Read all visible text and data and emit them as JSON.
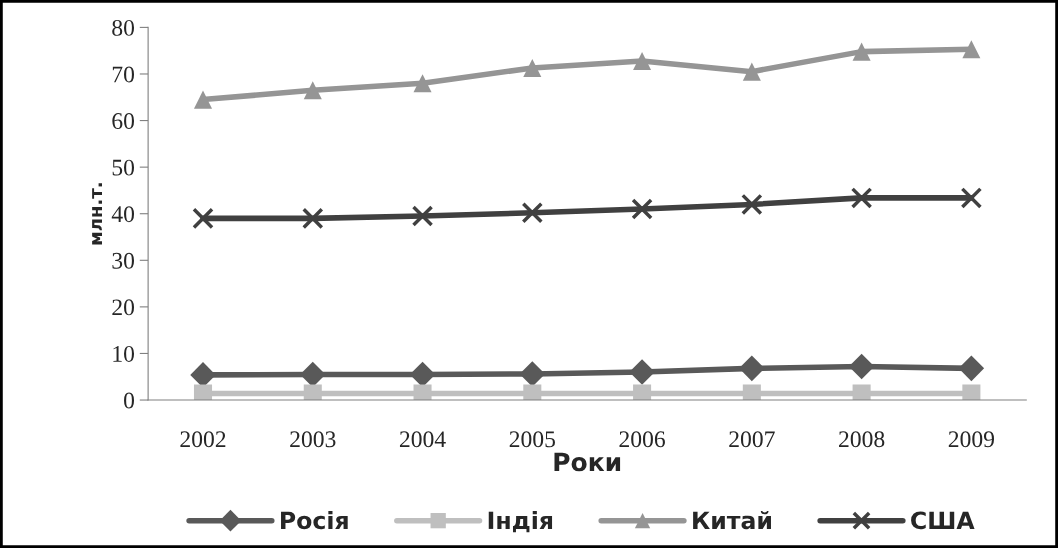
{
  "chart_data": {
    "type": "line",
    "xlabel": "Роки",
    "ylabel": "млн.т.",
    "categories": [
      "2002",
      "2003",
      "2004",
      "2005",
      "2006",
      "2007",
      "2008",
      "2009"
    ],
    "series": [
      {
        "name": "Росія",
        "color": "#595959",
        "marker": "diamond",
        "values": [
          5.4,
          5.5,
          5.5,
          5.6,
          6.0,
          6.8,
          7.2,
          6.8
        ]
      },
      {
        "name": "Індія",
        "color": "#bfbfbf",
        "marker": "square",
        "values": [
          1.4,
          1.4,
          1.4,
          1.4,
          1.4,
          1.4,
          1.4,
          1.4
        ]
      },
      {
        "name": "Китай",
        "color": "#959595",
        "marker": "triangle",
        "values": [
          64.5,
          66.5,
          68.0,
          71.3,
          72.8,
          70.5,
          74.8,
          75.3
        ]
      },
      {
        "name": "США",
        "color": "#404040",
        "marker": "cross",
        "values": [
          39.0,
          39.0,
          39.5,
          40.2,
          41.0,
          42.0,
          43.4,
          43.4
        ]
      }
    ],
    "ylim": [
      0,
      80
    ],
    "yticks": [
      0,
      10,
      20,
      30,
      40,
      50,
      60,
      70,
      80
    ],
    "grid": false,
    "legend": "bottom"
  }
}
